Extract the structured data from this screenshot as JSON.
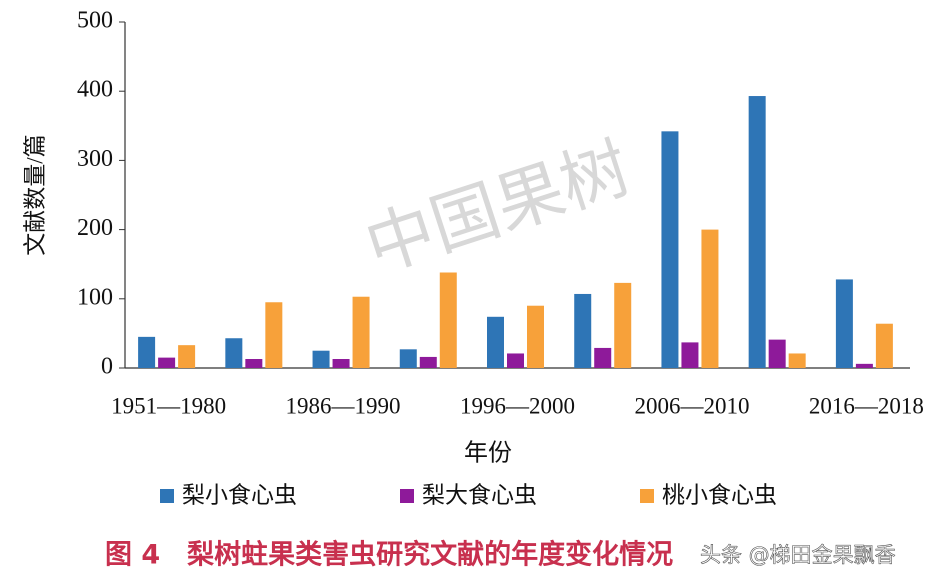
{
  "chart_data": {
    "type": "bar",
    "caption": "图 4　梨树蛀果类害虫研究文献的年度变化情况",
    "watermark": "中国果树",
    "credit": "头条 @梯田金果飘香",
    "x_label": "年份",
    "y_label": "文献数量/篇",
    "categories": [
      "1951—1980",
      null,
      "1986—1990",
      null,
      "1996—2000",
      null,
      "2006—2010",
      null,
      "2016—2018"
    ],
    "series": [
      {
        "name": "梨小食心虫",
        "color": "#2e75b6",
        "values": [
          45,
          43,
          25,
          27,
          74,
          107,
          342,
          393,
          128
        ]
      },
      {
        "name": "梨大食心虫",
        "color": "#8e1a9a",
        "values": [
          15,
          13,
          13,
          16,
          21,
          29,
          37,
          41,
          6
        ]
      },
      {
        "name": "桃小食心虫",
        "color": "#f7a13a",
        "values": [
          33,
          95,
          103,
          138,
          90,
          123,
          200,
          21,
          64
        ]
      }
    ],
    "ylim": [
      0,
      500
    ],
    "yticks": [
      0,
      100,
      200,
      300,
      400,
      500
    ],
    "grid": false
  }
}
